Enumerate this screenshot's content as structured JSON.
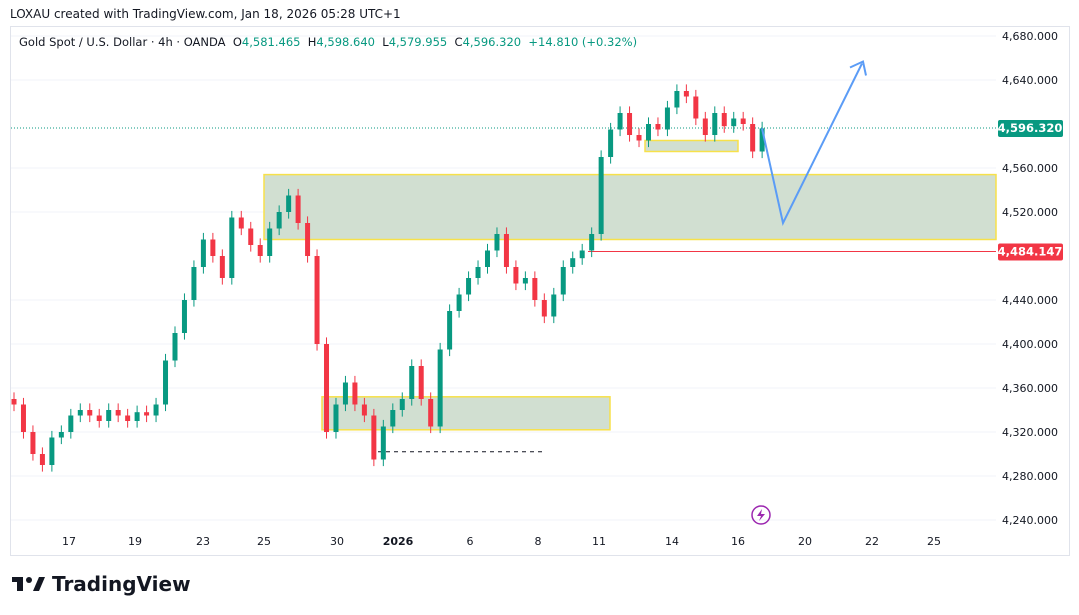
{
  "credit": "LOXAU created with TradingView.com, Jan 18, 2026 05:28 UTC+1",
  "legend": {
    "symbol": "Gold Spot / U.S. Dollar · 4h · OANDA",
    "o_label": "O",
    "o": "4,581.465",
    "h_label": "H",
    "h": "4,598.640",
    "l_label": "L",
    "l": "4,579.955",
    "c_label": "C",
    "c": "4,596.320",
    "change": "+14.810 (+0.32%)"
  },
  "logo": "TradingView",
  "colors": {
    "up": "#089981",
    "down": "#f23645",
    "zone_fill": "#d1dfd1",
    "zone_border": "#f7e14a",
    "arrow": "#5b9cf6",
    "last_price_badge": "#089981",
    "level_badge": "#f23645"
  },
  "chart_data": {
    "type": "candlestick",
    "ylim": [
      4230,
      4690
    ],
    "y_ticks": [
      "4,680.000",
      "4,640.000",
      "4,560.000",
      "4,520.000",
      "4,440.000",
      "4,400.000",
      "4,360.000",
      "4,320.000",
      "4,280.000",
      "4,240.000"
    ],
    "y_tick_values": [
      4680,
      4640,
      4560,
      4520,
      4440,
      4400,
      4360,
      4320,
      4280,
      4240
    ],
    "x_ticks": [
      "17",
      "19",
      "23",
      "25",
      "30",
      "2026",
      "6",
      "8",
      "11",
      "14",
      "16",
      "20",
      "22",
      "25"
    ],
    "close": [
      4345,
      4320,
      4300,
      4290,
      4315,
      4320,
      4335,
      4340,
      4335,
      4330,
      4340,
      4335,
      4330,
      4338,
      4335,
      4345,
      4385,
      4410,
      4440,
      4470,
      4495,
      4480,
      4460,
      4515,
      4505,
      4490,
      4480,
      4505,
      4520,
      4535,
      4510,
      4480,
      4400,
      4320,
      4345,
      4365,
      4345,
      4335,
      4295,
      4325,
      4340,
      4350,
      4380,
      4350,
      4325,
      4395,
      4430,
      4445,
      4460,
      4470,
      4485,
      4500,
      4470,
      4455,
      4460,
      4440,
      4425,
      4445,
      4470,
      4478,
      4485,
      4500,
      4570,
      4595,
      4610,
      4590,
      4585,
      4600,
      4595,
      4615,
      4630,
      4625,
      4605,
      4590,
      4610,
      4598,
      4605,
      4600,
      4575,
      4596
    ],
    "last_price": "4,596.320",
    "last_price_value": 4596.32,
    "level": "4,484.147",
    "level_value": 4484.147,
    "zones": [
      {
        "top": 4554,
        "bottom": 4495
      },
      {
        "top": 4352,
        "bottom": 4322
      },
      {
        "top": 4585,
        "bottom": 4575
      }
    ],
    "dashed_level": 4302,
    "projection": [
      4596,
      4510,
      4655
    ]
  }
}
